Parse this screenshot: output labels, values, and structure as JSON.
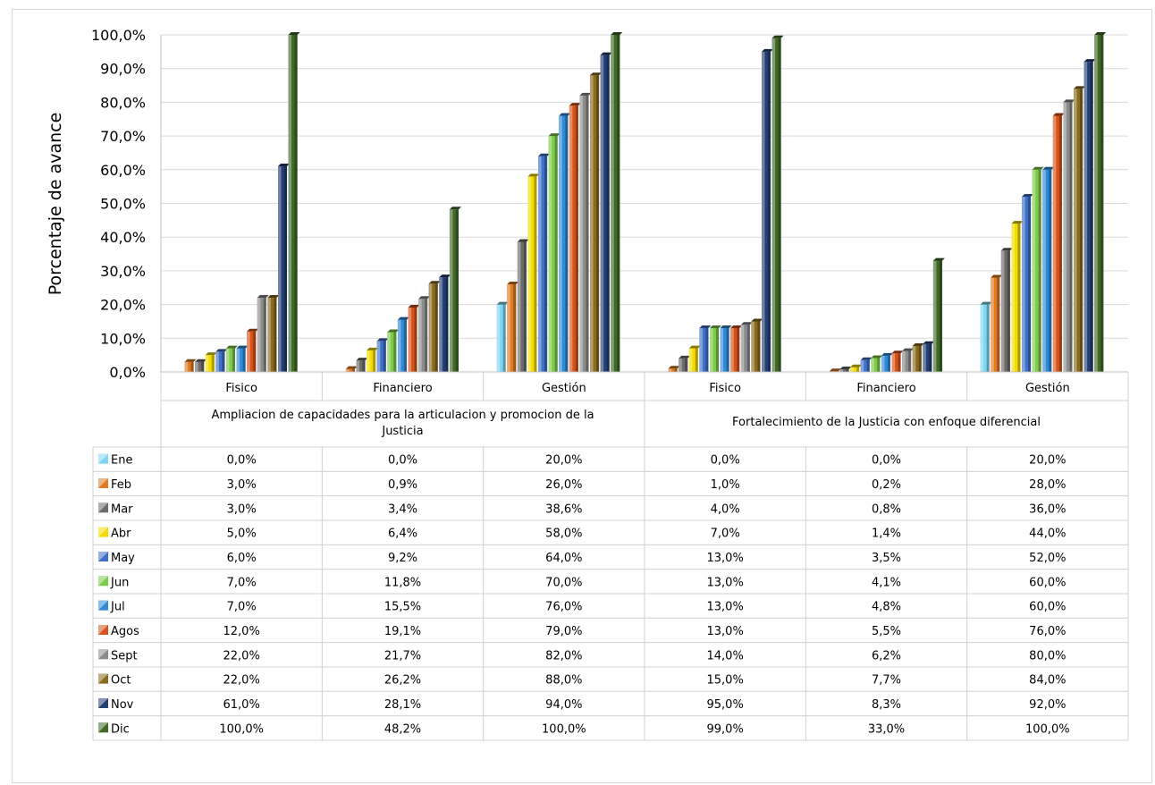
{
  "chart_data": {
    "type": "bar",
    "ylabel": "Porcentaje de avance",
    "ylim": [
      0,
      100
    ],
    "y_ticks": [
      "0,0%",
      "10,0%",
      "20,0%",
      "30,0%",
      "40,0%",
      "50,0%",
      "60,0%",
      "70,0%",
      "80,0%",
      "90,0%",
      "100,0%"
    ],
    "grid": true,
    "groups": [
      {
        "name": "Ampliacion de capacidades para la articulacion y promocion de la Justicia",
        "categories": [
          "Fisico",
          "Financiero",
          "Gestión"
        ]
      },
      {
        "name": "Fortalecimiento de la Justicia con enfoque diferencial",
        "categories": [
          "Fisico",
          "Financiero",
          "Gestión"
        ]
      }
    ],
    "series": [
      {
        "name": "Ene",
        "color": "#7fd6f2",
        "values": [
          0.0,
          0.0,
          20.0,
          0.0,
          0.0,
          20.0
        ],
        "labels": [
          "0,0%",
          "0,0%",
          "20,0%",
          "0,0%",
          "0,0%",
          "20,0%"
        ]
      },
      {
        "name": "Feb",
        "color": "#e07b22",
        "values": [
          3.0,
          0.9,
          26.0,
          1.0,
          0.2,
          28.0
        ],
        "labels": [
          "3,0%",
          "0,9%",
          "26,0%",
          "1,0%",
          "0,2%",
          "28,0%"
        ]
      },
      {
        "name": "Mar",
        "color": "#6b6b6b",
        "values": [
          3.0,
          3.4,
          38.6,
          4.0,
          0.8,
          36.0
        ],
        "labels": [
          "3,0%",
          "3,4%",
          "38,6%",
          "4,0%",
          "0,8%",
          "36,0%"
        ]
      },
      {
        "name": "Abr",
        "color": "#f3dd00",
        "values": [
          5.0,
          6.4,
          58.0,
          7.0,
          1.4,
          44.0
        ],
        "labels": [
          "5,0%",
          "6,4%",
          "58,0%",
          "7,0%",
          "1,4%",
          "44,0%"
        ]
      },
      {
        "name": "May",
        "color": "#3f71c8",
        "values": [
          6.0,
          9.2,
          64.0,
          13.0,
          3.5,
          52.0
        ],
        "labels": [
          "6,0%",
          "9,2%",
          "64,0%",
          "13,0%",
          "3,5%",
          "52,0%"
        ]
      },
      {
        "name": "Jun",
        "color": "#7ecb4a",
        "values": [
          7.0,
          11.8,
          70.0,
          13.0,
          4.1,
          60.0
        ],
        "labels": [
          "7,0%",
          "11,8%",
          "70,0%",
          "13,0%",
          "4,1%",
          "60,0%"
        ]
      },
      {
        "name": "Jul",
        "color": "#2f8ad8",
        "values": [
          7.0,
          15.5,
          76.0,
          13.0,
          4.8,
          60.0
        ],
        "labels": [
          "7,0%",
          "15,5%",
          "76,0%",
          "13,0%",
          "4,8%",
          "60,0%"
        ]
      },
      {
        "name": "Agos",
        "color": "#d7531a",
        "values": [
          12.0,
          19.1,
          79.0,
          13.0,
          5.5,
          76.0
        ],
        "labels": [
          "12,0%",
          "19,1%",
          "79,0%",
          "13,0%",
          "5,5%",
          "76,0%"
        ]
      },
      {
        "name": "Sept",
        "color": "#8c8c8c",
        "values": [
          22.0,
          21.7,
          82.0,
          14.0,
          6.2,
          80.0
        ],
        "labels": [
          "22,0%",
          "21,7%",
          "82,0%",
          "14,0%",
          "6,2%",
          "80,0%"
        ]
      },
      {
        "name": "Oct",
        "color": "#8a6a1e",
        "values": [
          22.0,
          26.2,
          88.0,
          15.0,
          7.7,
          84.0
        ],
        "labels": [
          "22,0%",
          "26,2%",
          "88,0%",
          "15,0%",
          "7,7%",
          "84,0%"
        ]
      },
      {
        "name": "Nov",
        "color": "#243f74",
        "values": [
          61.0,
          28.1,
          94.0,
          95.0,
          8.3,
          92.0
        ],
        "labels": [
          "61,0%",
          "28,1%",
          "94,0%",
          "95,0%",
          "8,3%",
          "92,0%"
        ]
      },
      {
        "name": "Dic",
        "color": "#3e6a26",
        "values": [
          100.0,
          48.2,
          100.0,
          99.0,
          33.0,
          100.0
        ],
        "labels": [
          "100,0%",
          "48,2%",
          "100,0%",
          "99,0%",
          "33,0%",
          "100,0%"
        ]
      }
    ]
  }
}
